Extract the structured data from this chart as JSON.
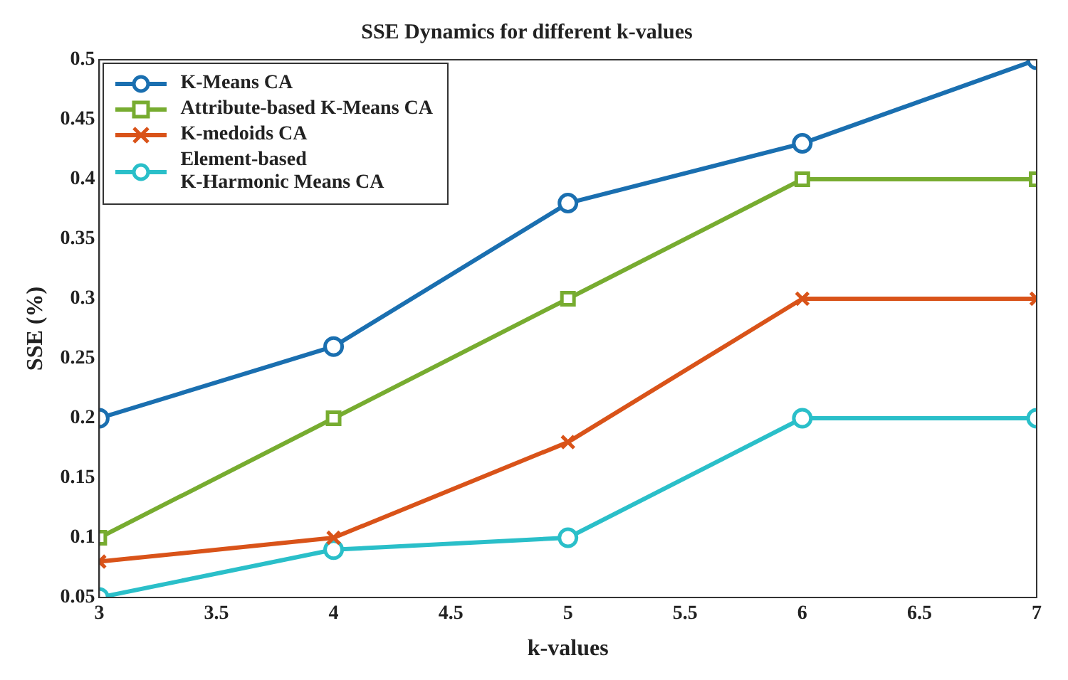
{
  "chart_data": {
    "type": "line",
    "title": "SSE Dynamics for different k-values",
    "xlabel": "k-values",
    "ylabel": "SSE (%)",
    "x": [
      3,
      4,
      5,
      6,
      7
    ],
    "series": [
      {
        "name": "K-Means CA",
        "color": "#1a6fb0",
        "marker": "circle",
        "values": [
          0.2,
          0.26,
          0.38,
          0.43,
          0.5
        ]
      },
      {
        "name": "Attribute-based K-Means CA",
        "color": "#77ac30",
        "marker": "square",
        "values": [
          0.1,
          0.2,
          0.3,
          0.4,
          0.4
        ]
      },
      {
        "name": "K-medoids CA",
        "color": "#d95319",
        "marker": "cross",
        "values": [
          0.08,
          0.1,
          0.18,
          0.3,
          0.3
        ]
      },
      {
        "name": "Element-based\nK-Harmonic Means CA",
        "color": "#2abfc9",
        "marker": "circle",
        "values": [
          0.05,
          0.09,
          0.1,
          0.2,
          0.2
        ]
      }
    ],
    "xlim": [
      3,
      7
    ],
    "xticks": [
      3,
      3.5,
      4,
      4.5,
      5,
      5.5,
      6,
      6.5,
      7
    ],
    "ylim": [
      0.05,
      0.5
    ],
    "yticks": [
      0.05,
      0.1,
      0.15,
      0.2,
      0.25,
      0.3,
      0.35,
      0.4,
      0.45,
      0.5
    ],
    "grid": false,
    "legend": "top left",
    "line_style": "solid"
  }
}
